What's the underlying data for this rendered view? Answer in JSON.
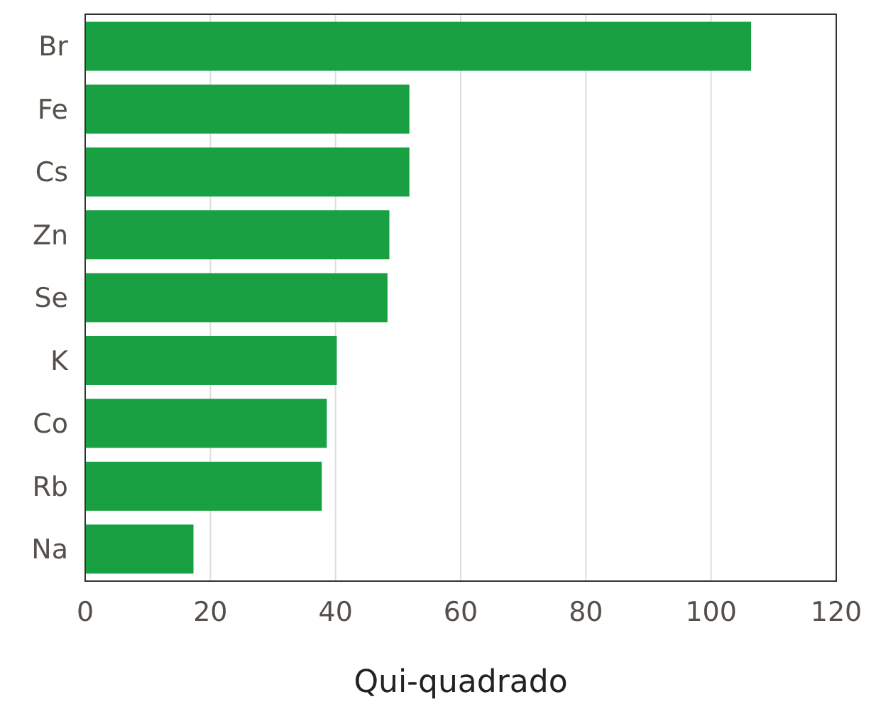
{
  "chart_data": {
    "type": "bar",
    "orientation": "horizontal",
    "xlabel": "Qui-quadrado",
    "categories": [
      "Br",
      "Fe",
      "Cs",
      "Zn",
      "Se",
      "K",
      "Co",
      "Rb",
      "Na"
    ],
    "values": [
      106.4,
      51.8,
      51.8,
      48.6,
      48.3,
      40.2,
      38.6,
      37.8,
      17.3
    ],
    "color": "#18a043",
    "xlim": [
      0,
      120
    ],
    "xticks": [
      0,
      20,
      40,
      60,
      80,
      100,
      120
    ],
    "grid": "x"
  }
}
